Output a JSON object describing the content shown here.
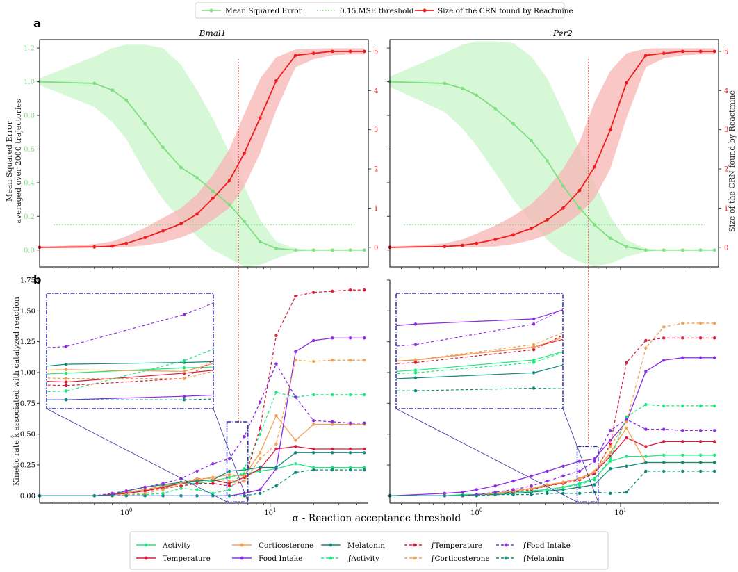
{
  "figure": {
    "panel_a": "a",
    "panel_b": "b",
    "xlabel": "α - Reaction acceptance threshold",
    "top_legend": [
      "Mean Squared Error",
      "0.15 MSE threshold",
      "Size of the CRN found by Reactmine"
    ],
    "bottom_legend": [
      "Activity",
      "Temperature",
      "Corticosterone",
      "Food Intake",
      "Melatonin",
      "∫Activity",
      "∫Temperature",
      "∫Corticosterone",
      "∫Food Intake",
      "∫Melatonin"
    ]
  },
  "colors": {
    "mse": "#7fdf7f",
    "mse_band": "#c8f5c8",
    "size": "#ee1c1c",
    "size_band": "#f8b4b4",
    "threshold_v": "#cc0000",
    "inset": "#2e2e9e",
    "Activity": "#1de87e",
    "Temperature": "#d81c3c",
    "Corticosterone": "#f0a050",
    "Food Intake": "#8b2be2",
    "Melatonin": "#0f8a7a"
  },
  "chart_data": [
    {
      "type": "line",
      "title": "Bmal1",
      "ylabel": "Mean Squared Error\naveraged over 2000 trajectories",
      "y2label": "",
      "x_scale": "log",
      "xlim": [
        0.25,
        48
      ],
      "ylim": [
        -0.1,
        1.25
      ],
      "y2lim": [
        -0.5,
        5.3
      ],
      "yticks": [
        "0.0",
        "0.2",
        "0.4",
        "0.6",
        "0.8",
        "1.0",
        "1.2"
      ],
      "y2ticks": [
        "0",
        "1",
        "2",
        "3",
        "4",
        "5"
      ],
      "mse_threshold": 0.15,
      "alpha_marker": 6,
      "x": [
        0.25,
        0.6,
        0.8,
        1.0,
        1.35,
        1.8,
        2.4,
        3.1,
        4.0,
        5.2,
        6.6,
        8.5,
        11,
        15,
        20,
        27,
        36,
        45
      ],
      "series": [
        {
          "name": "Mean Squared Error",
          "axis": "left",
          "values": [
            1.0,
            0.99,
            0.95,
            0.89,
            0.75,
            0.61,
            0.49,
            0.43,
            0.35,
            0.27,
            0.17,
            0.05,
            0.01,
            0.0,
            0.0,
            0.0,
            0.0,
            0.0
          ],
          "upper": [
            1.02,
            1.15,
            1.2,
            1.22,
            1.22,
            1.2,
            1.1,
            0.95,
            0.78,
            0.58,
            0.38,
            0.18,
            0.05,
            0.01,
            0.0,
            0.0,
            0.0,
            0.0
          ],
          "lower": [
            0.98,
            0.85,
            0.76,
            0.66,
            0.46,
            0.3,
            0.18,
            0.08,
            0.0,
            -0.05,
            -0.1,
            -0.09,
            -0.05,
            -0.01,
            0.0,
            0.0,
            0.0,
            0.0
          ]
        },
        {
          "name": "Size of the CRN found by Reactmine",
          "axis": "right",
          "values": [
            0.0,
            0.01,
            0.03,
            0.1,
            0.25,
            0.42,
            0.6,
            0.85,
            1.25,
            1.7,
            2.4,
            3.3,
            4.25,
            4.9,
            4.95,
            5.0,
            5.0,
            5.0
          ],
          "upper": [
            0.0,
            0.08,
            0.15,
            0.28,
            0.5,
            0.75,
            1.0,
            1.35,
            1.85,
            2.5,
            3.4,
            4.3,
            4.85,
            5.05,
            5.07,
            5.08,
            5.08,
            5.08
          ],
          "lower": [
            0.0,
            0.0,
            0.0,
            0.0,
            0.05,
            0.12,
            0.25,
            0.42,
            0.7,
            1.0,
            1.55,
            2.4,
            3.5,
            4.6,
            4.8,
            4.9,
            4.92,
            4.92
          ]
        }
      ]
    },
    {
      "type": "line",
      "title": "Per2",
      "ylabel": "",
      "y2label": "Size of the CRN found by Reactmine",
      "x_scale": "log",
      "xlim": [
        0.25,
        48
      ],
      "ylim": [
        -0.1,
        1.25
      ],
      "y2lim": [
        -0.5,
        5.3
      ],
      "y2ticks": [
        "0",
        "1",
        "2",
        "3",
        "4",
        "5"
      ],
      "mse_threshold": 0.15,
      "alpha_marker": 6,
      "x": [
        0.25,
        0.6,
        0.8,
        1.0,
        1.35,
        1.8,
        2.4,
        3.1,
        4.0,
        5.2,
        6.6,
        8.5,
        11,
        15,
        20,
        27,
        36,
        45
      ],
      "series": [
        {
          "name": "Mean Squared Error",
          "axis": "left",
          "values": [
            1.0,
            0.99,
            0.96,
            0.92,
            0.84,
            0.75,
            0.65,
            0.53,
            0.38,
            0.25,
            0.15,
            0.07,
            0.02,
            0.0,
            0.0,
            0.0,
            0.0,
            0.0
          ],
          "upper": [
            1.03,
            1.17,
            1.22,
            1.24,
            1.24,
            1.23,
            1.15,
            1.02,
            0.82,
            0.6,
            0.4,
            0.2,
            0.06,
            0.01,
            0.0,
            0.0,
            0.0,
            0.0
          ],
          "lower": [
            0.97,
            0.82,
            0.72,
            0.62,
            0.46,
            0.3,
            0.17,
            0.06,
            -0.02,
            -0.07,
            -0.1,
            -0.08,
            -0.04,
            -0.01,
            0.0,
            0.0,
            0.0,
            0.0
          ]
        },
        {
          "name": "Size of the CRN found by Reactmine",
          "axis": "right",
          "values": [
            0.0,
            0.02,
            0.05,
            0.1,
            0.2,
            0.32,
            0.48,
            0.7,
            1.0,
            1.45,
            2.05,
            3.0,
            4.2,
            4.9,
            4.95,
            5.0,
            5.0,
            5.0
          ],
          "upper": [
            0.0,
            0.1,
            0.2,
            0.35,
            0.55,
            0.8,
            1.1,
            1.5,
            2.0,
            2.7,
            3.7,
            4.5,
            4.95,
            5.07,
            5.08,
            5.08,
            5.08,
            5.08
          ],
          "lower": [
            0.0,
            0.0,
            0.0,
            0.0,
            0.02,
            0.08,
            0.18,
            0.32,
            0.55,
            0.85,
            1.25,
            2.0,
            3.3,
            4.6,
            4.82,
            4.9,
            4.92,
            4.92
          ]
        }
      ]
    },
    {
      "type": "line",
      "title": "",
      "ylabel": "Kinetic rate k̂ associated with catalyzed reaction",
      "x_scale": "log",
      "xlim": [
        0.25,
        48
      ],
      "ylim": [
        -0.06,
        1.75
      ],
      "yticks": [
        "0.00",
        "0.25",
        "0.50",
        "0.75",
        "1.00",
        "1.25",
        "1.50",
        "1.75"
      ],
      "inset_x": [
        5.0,
        7.0
      ],
      "inset_y": [
        -0.05,
        0.6
      ],
      "x": [
        0.25,
        0.6,
        0.8,
        1.0,
        1.35,
        1.8,
        2.4,
        3.1,
        4.0,
        5.2,
        6.6,
        8.5,
        11,
        15,
        20,
        27,
        36,
        45
      ],
      "series": [
        {
          "name": "Activity",
          "dashed": false,
          "values": [
            0,
            0,
            0.01,
            0.03,
            0.05,
            0.08,
            0.1,
            0.1,
            0.12,
            0.15,
            0.18,
            0.2,
            0.22,
            0.26,
            0.23,
            0.23,
            0.23,
            0.23
          ]
        },
        {
          "name": "Temperature",
          "dashed": false,
          "values": [
            0,
            0,
            0.01,
            0.02,
            0.04,
            0.07,
            0.1,
            0.12,
            0.13,
            0.1,
            0.15,
            0.22,
            0.38,
            0.4,
            0.38,
            0.38,
            0.38,
            0.38
          ]
        },
        {
          "name": "Corticosterone",
          "dashed": false,
          "values": [
            0,
            0,
            0.01,
            0.03,
            0.05,
            0.08,
            0.11,
            0.13,
            0.15,
            0.17,
            0.16,
            0.35,
            0.65,
            0.45,
            0.58,
            0.58,
            0.58,
            0.58
          ]
        },
        {
          "name": "Food Intake",
          "dashed": false,
          "values": [
            0,
            0,
            0,
            0,
            0,
            0,
            0,
            0,
            0,
            0,
            0.02,
            0.05,
            0.22,
            1.17,
            1.26,
            1.28,
            1.28,
            1.28
          ]
        },
        {
          "name": "Melatonin",
          "dashed": false,
          "values": [
            0,
            0,
            0.01,
            0.04,
            0.07,
            0.09,
            0.11,
            0.12,
            0.13,
            0.2,
            0.21,
            0.23,
            0.23,
            0.35,
            0.35,
            0.35,
            0.35,
            0.35
          ]
        },
        {
          "name": "∫Activity",
          "dashed": true,
          "values": [
            0,
            0,
            0,
            0.01,
            0.01,
            0.02,
            0.06,
            0.05,
            0.02,
            0.05,
            0.22,
            0.5,
            0.84,
            0.8,
            0.82,
            0.82,
            0.82,
            0.82
          ]
        },
        {
          "name": "∫Temperature",
          "dashed": true,
          "values": [
            0,
            0,
            0.01,
            0.02,
            0.04,
            0.06,
            0.08,
            0.1,
            0.1,
            0.08,
            0.12,
            0.55,
            1.3,
            1.62,
            1.65,
            1.66,
            1.67,
            1.67
          ]
        },
        {
          "name": "∫Corticosterone",
          "dashed": true,
          "values": [
            0,
            0,
            0,
            0.01,
            0.02,
            0.05,
            0.1,
            0.14,
            0.14,
            0.12,
            0.12,
            0.3,
            0.42,
            1.1,
            1.09,
            1.1,
            1.1,
            1.1
          ]
        },
        {
          "name": "∫Food Intake",
          "dashed": true,
          "values": [
            0,
            0,
            0.02,
            0.04,
            0.07,
            0.1,
            0.14,
            0.2,
            0.26,
            0.3,
            0.48,
            0.76,
            1.07,
            0.8,
            0.61,
            0.6,
            0.59,
            0.59
          ]
        },
        {
          "name": "∫Melatonin",
          "dashed": true,
          "values": [
            0,
            0,
            0,
            0,
            0,
            0,
            0,
            0,
            0,
            0,
            0,
            0.02,
            0.08,
            0.19,
            0.21,
            0.21,
            0.21,
            0.21
          ]
        }
      ]
    },
    {
      "type": "line",
      "title": "",
      "x_scale": "log",
      "xlim": [
        0.25,
        48
      ],
      "ylim": [
        -0.06,
        1.75
      ],
      "inset_x": [
        5.0,
        7.0
      ],
      "inset_y": [
        -0.05,
        0.4
      ],
      "x": [
        0.25,
        0.6,
        0.8,
        1.0,
        1.35,
        1.8,
        2.4,
        3.1,
        4.0,
        5.2,
        6.6,
        8.5,
        11,
        15,
        20,
        27,
        36,
        45
      ],
      "series": [
        {
          "name": "Activity",
          "dashed": false,
          "values": [
            0,
            0,
            0.01,
            0.01,
            0.02,
            0.03,
            0.04,
            0.05,
            0.07,
            0.1,
            0.14,
            0.28,
            0.32,
            0.32,
            0.33,
            0.33,
            0.33,
            0.33
          ]
        },
        {
          "name": "Temperature",
          "dashed": false,
          "values": [
            0,
            0,
            0,
            0.01,
            0.02,
            0.04,
            0.06,
            0.08,
            0.11,
            0.14,
            0.19,
            0.32,
            0.47,
            0.4,
            0.44,
            0.44,
            0.44,
            0.44
          ]
        },
        {
          "name": "Corticosterone",
          "dashed": false,
          "values": [
            0,
            0,
            0,
            0.01,
            0.02,
            0.04,
            0.06,
            0.09,
            0.11,
            0.14,
            0.19,
            0.35,
            0.55,
            0.27,
            0.27,
            0.27,
            0.27,
            0.27
          ]
        },
        {
          "name": "Food Intake",
          "dashed": false,
          "values": [
            0,
            0.02,
            0.03,
            0.05,
            0.08,
            0.12,
            0.16,
            0.2,
            0.24,
            0.28,
            0.3,
            0.45,
            0.6,
            1.01,
            1.1,
            1.12,
            1.12,
            1.12
          ]
        },
        {
          "name": "Melatonin",
          "dashed": false,
          "values": [
            0,
            0,
            0,
            0.01,
            0.01,
            0.02,
            0.03,
            0.04,
            0.05,
            0.07,
            0.09,
            0.22,
            0.24,
            0.27,
            0.27,
            0.27,
            0.27,
            0.27
          ]
        },
        {
          "name": "∫Activity",
          "dashed": true,
          "values": [
            0,
            0,
            0,
            0.01,
            0.01,
            0.02,
            0.04,
            0.05,
            0.07,
            0.09,
            0.13,
            0.3,
            0.64,
            0.74,
            0.73,
            0.73,
            0.73,
            0.73
          ]
        },
        {
          "name": "∫Temperature",
          "dashed": true,
          "values": [
            0,
            0,
            0,
            0.01,
            0.02,
            0.03,
            0.05,
            0.08,
            0.1,
            0.13,
            0.18,
            0.42,
            1.08,
            1.26,
            1.28,
            1.28,
            1.28,
            1.28
          ]
        },
        {
          "name": "∫Corticosterone",
          "dashed": true,
          "values": [
            0,
            0,
            0,
            0.01,
            0.02,
            0.04,
            0.06,
            0.08,
            0.11,
            0.14,
            0.2,
            0.4,
            0.6,
            1.2,
            1.37,
            1.4,
            1.4,
            1.4
          ]
        },
        {
          "name": "∫Food Intake",
          "dashed": true,
          "values": [
            0,
            0,
            0,
            0.01,
            0.03,
            0.05,
            0.08,
            0.12,
            0.16,
            0.2,
            0.28,
            0.53,
            0.62,
            0.54,
            0.54,
            0.53,
            0.53,
            0.53
          ]
        },
        {
          "name": "∫Melatonin",
          "dashed": true,
          "values": [
            0,
            0,
            0,
            0,
            0.01,
            0.01,
            0.01,
            0.02,
            0.02,
            0.02,
            0.03,
            0.02,
            0.03,
            0.2,
            0.2,
            0.2,
            0.2,
            0.2
          ]
        }
      ]
    }
  ]
}
